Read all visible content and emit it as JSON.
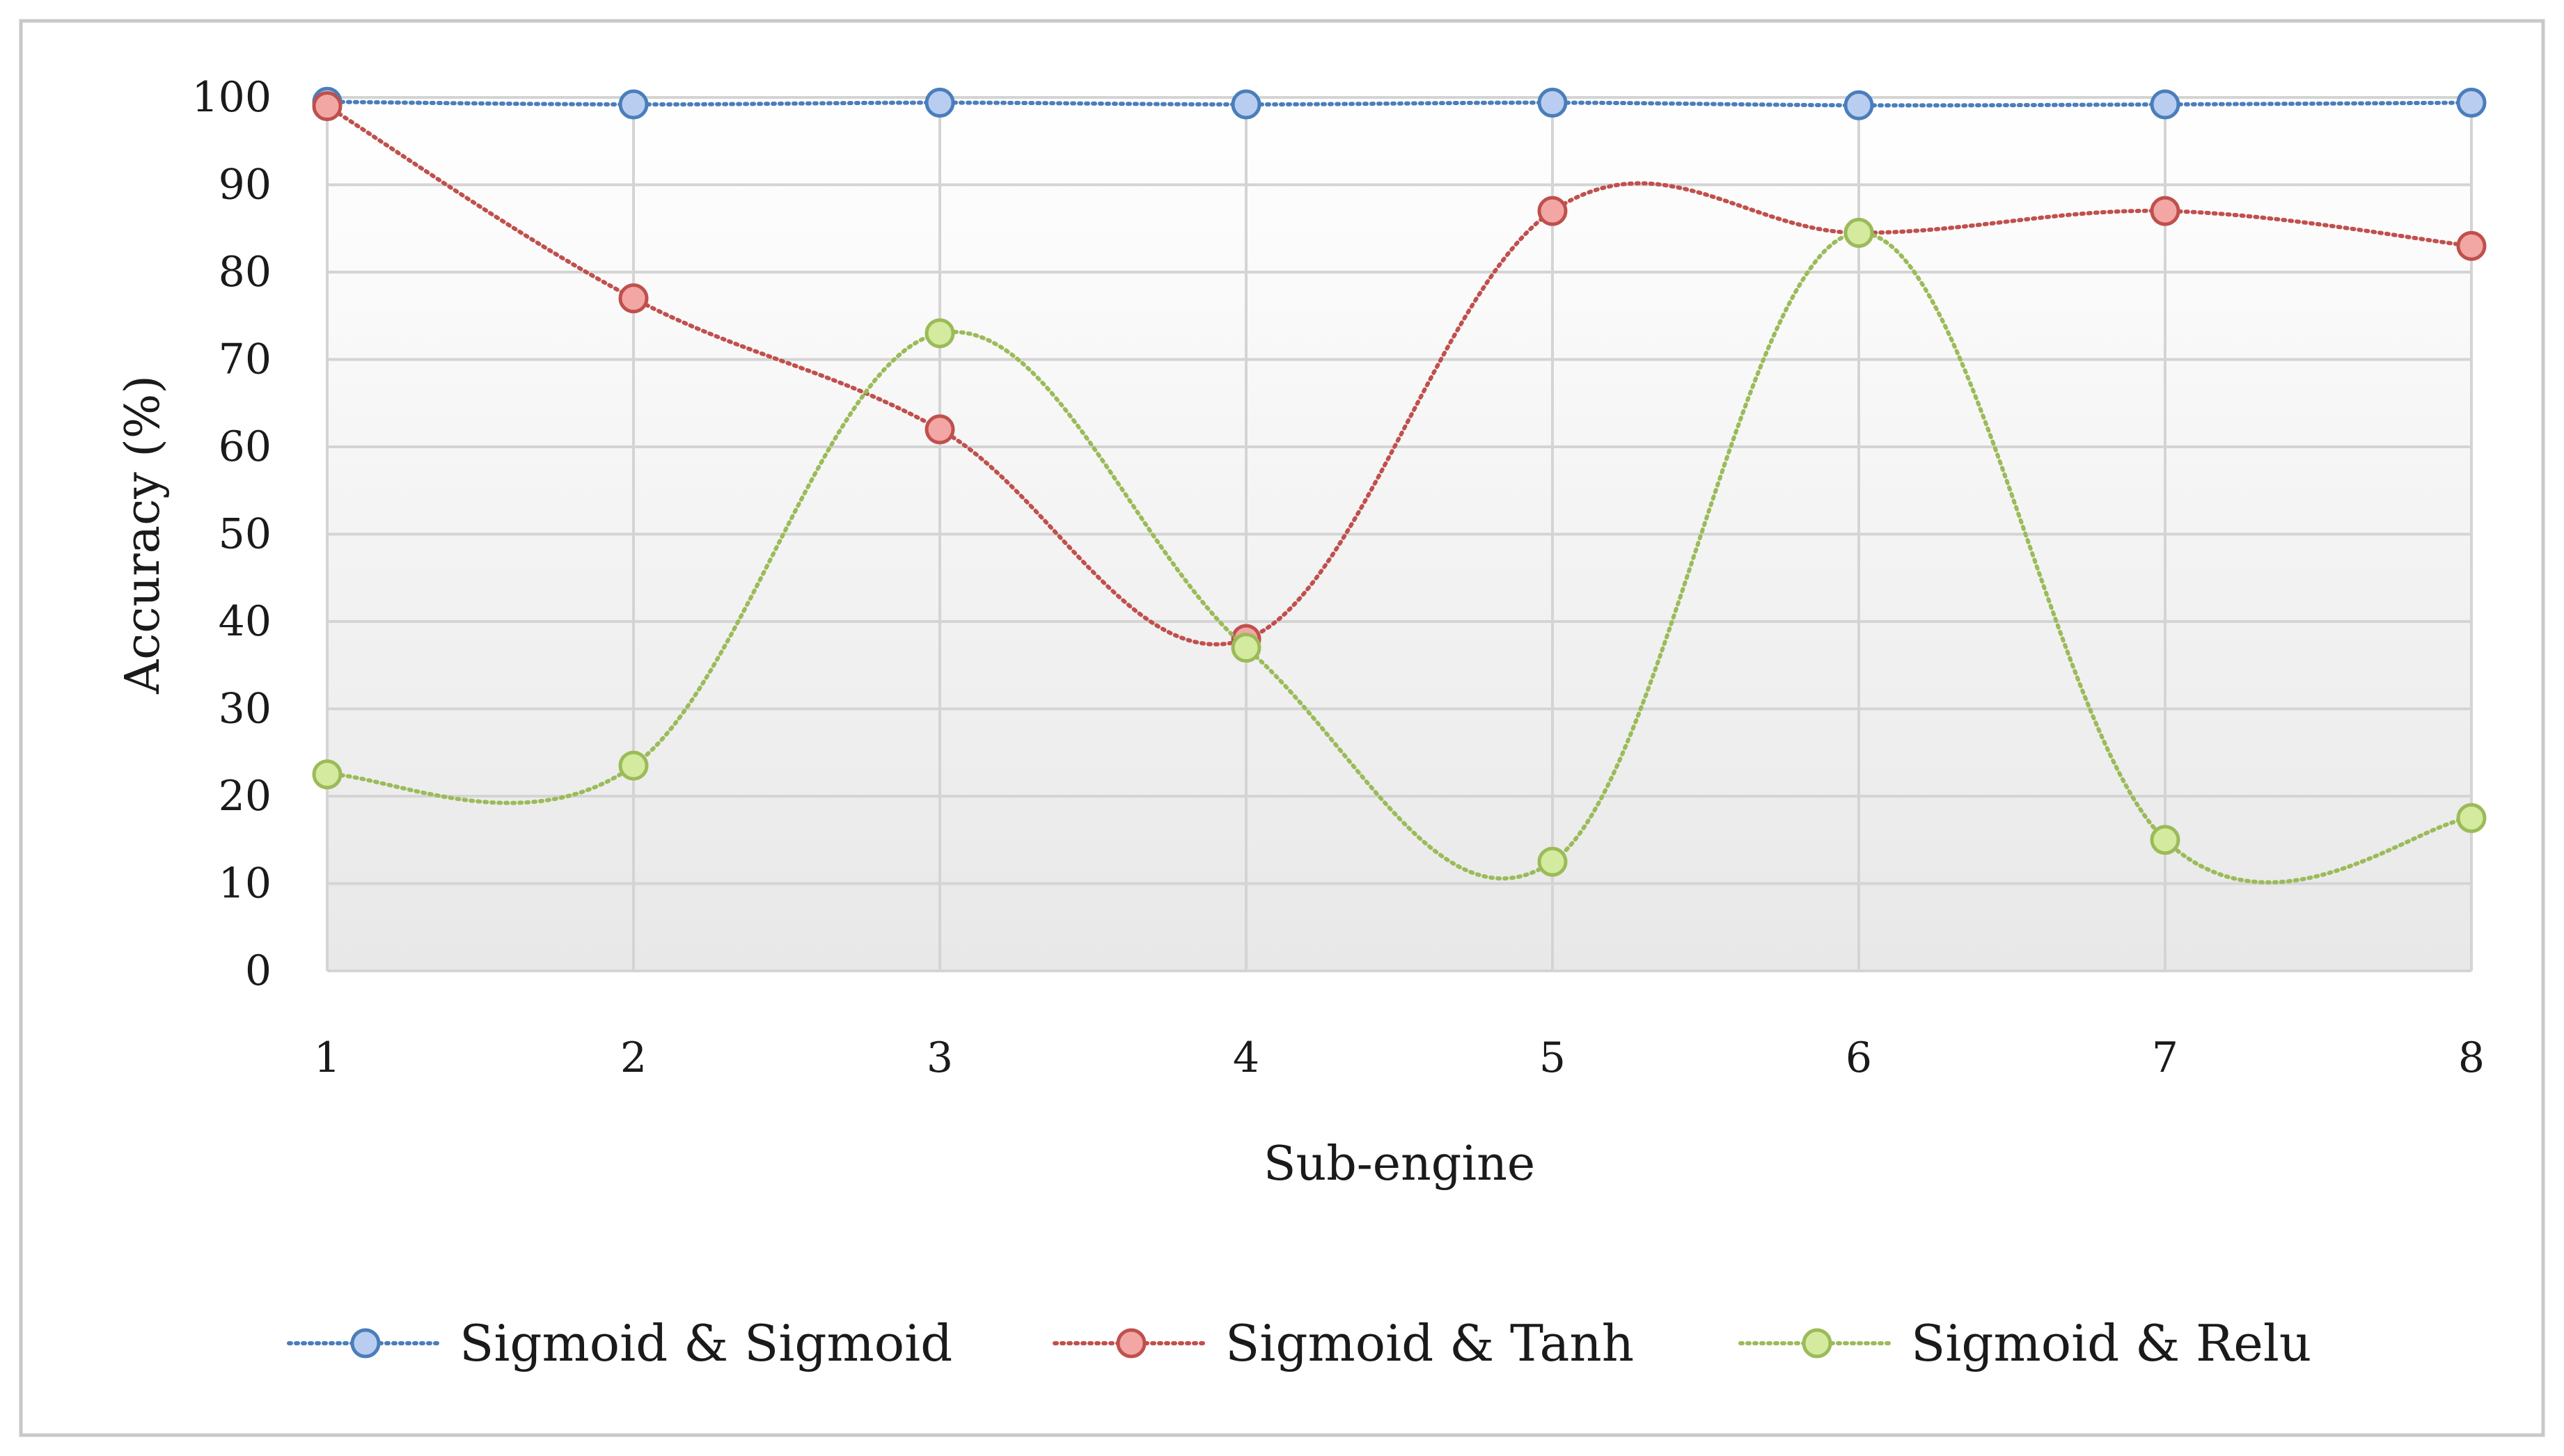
{
  "chart_data": {
    "type": "line",
    "title": "",
    "xlabel": "Sub-engine",
    "ylabel": "Accuracy (%)",
    "x": [
      1,
      2,
      3,
      4,
      5,
      6,
      7,
      8
    ],
    "x_tick_labels": [
      "1",
      "2",
      "3",
      "4",
      "5",
      "6",
      "7",
      "8"
    ],
    "y_tick_labels": [
      "0",
      "10",
      "20",
      "30",
      "40",
      "50",
      "60",
      "70",
      "80",
      "90",
      "100"
    ],
    "ylim": [
      0,
      100
    ],
    "grid": true,
    "line_style": "dotted, smoothed",
    "legend_position": "bottom",
    "series": [
      {
        "name": "Sigmoid & Sigmoid",
        "values": [
          99.5,
          99.2,
          99.4,
          99.2,
          99.4,
          99.1,
          99.2,
          99.4
        ],
        "color": "#4a7ebb",
        "fill": "#b9cdf0"
      },
      {
        "name": "Sigmoid & Tanh",
        "values": [
          99.0,
          77.0,
          62.0,
          38.0,
          87.0,
          84.5,
          87.0,
          83.0
        ],
        "color": "#c0504d",
        "fill": "#f2a7a5"
      },
      {
        "name": "Sigmoid & Relu",
        "values": [
          22.5,
          23.5,
          73.0,
          37.0,
          12.5,
          84.5,
          15.0,
          17.5
        ],
        "color": "#9bbb59",
        "fill": "#d4ea9e"
      }
    ]
  }
}
